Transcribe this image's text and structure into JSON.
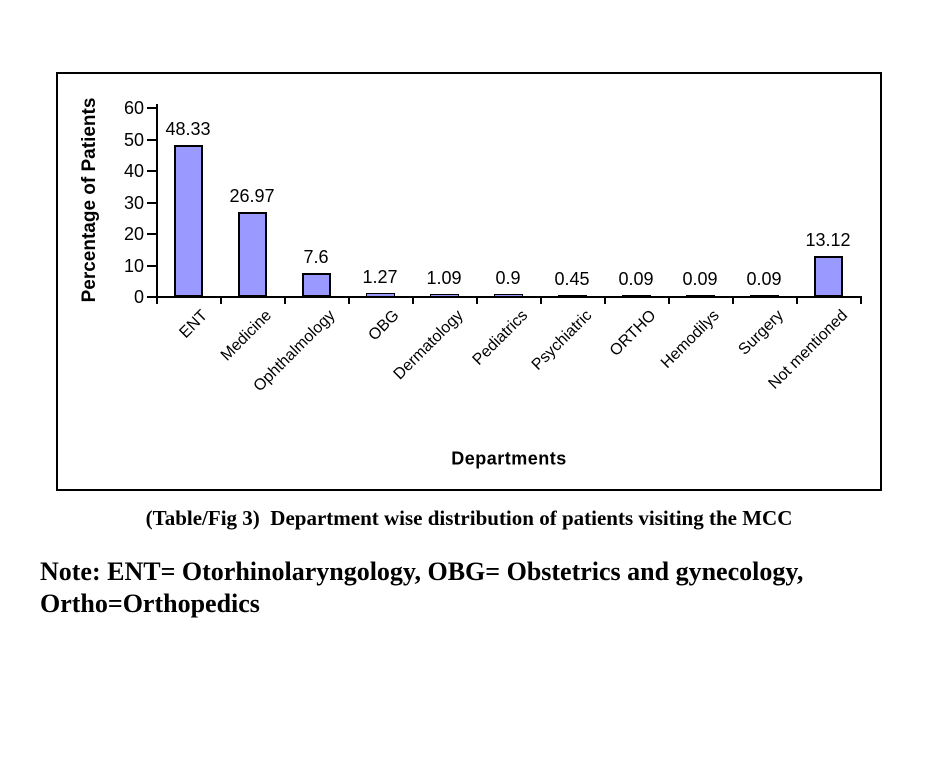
{
  "chart_data": {
    "type": "bar",
    "categories": [
      "ENT",
      "Medicine",
      "Ophthalmology",
      "OBG",
      "Dermatology",
      "Pediatrics",
      "Psychiatric",
      "ORTHO",
      "Hemodilys",
      "Surgery",
      "Not mentioned"
    ],
    "values": [
      48.33,
      26.97,
      7.6,
      1.27,
      1.09,
      0.9,
      0.45,
      0.09,
      0.09,
      0.09,
      13.12
    ],
    "data_labels": [
      "48.33",
      "26.97",
      "7.6",
      "1.27",
      "1.09",
      "0.9",
      "0.45",
      "0.09",
      "0.09",
      "0.09",
      "13.12"
    ],
    "title": "",
    "xlabel": "Departments",
    "ylabel": "Percentage of Patients",
    "ylim": [
      0,
      60
    ],
    "yticks": [
      0,
      10,
      20,
      30,
      40,
      50,
      60
    ],
    "grid": false,
    "legend_position": "none",
    "bar_fill_color": "#9999FF",
    "bar_border_color": "#000000",
    "axis_color": "#000000"
  },
  "caption": "(Table/Fig 3)  Department wise distribution of patients visiting the MCC",
  "note": {
    "line1": "Note: ENT= Otorhinolaryngology, OBG= Obstetrics and gynecology,",
    "line2": "Ortho=Orthopedics"
  }
}
